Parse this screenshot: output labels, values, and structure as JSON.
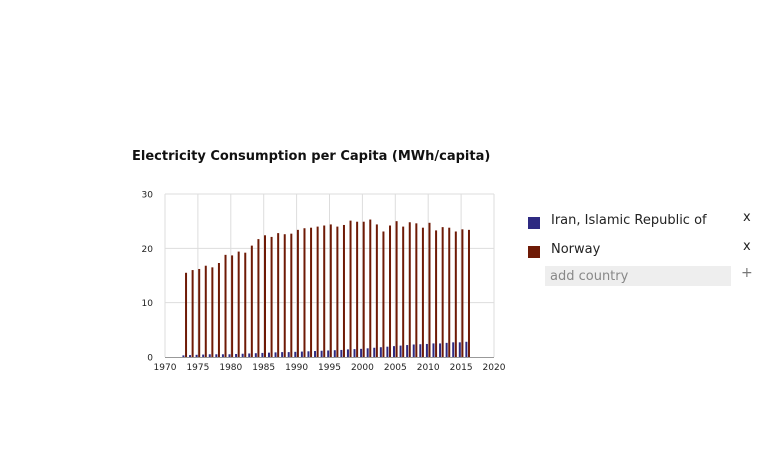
{
  "chart_data": {
    "type": "bar",
    "title": "Electricity Consumption per Capita (MWh/capita)",
    "xlabel": "",
    "ylabel": "",
    "xlim": [
      1970,
      2020
    ],
    "ylim": [
      0,
      30
    ],
    "x_ticks": [
      1970,
      1975,
      1980,
      1985,
      1990,
      1995,
      2000,
      2005,
      2010,
      2015,
      2020
    ],
    "y_ticks": [
      0,
      10,
      20,
      30
    ],
    "grid": true,
    "legend_position": "right",
    "x": [
      1973,
      1974,
      1975,
      1976,
      1977,
      1978,
      1979,
      1980,
      1981,
      1982,
      1983,
      1984,
      1985,
      1986,
      1987,
      1988,
      1989,
      1990,
      1991,
      1992,
      1993,
      1994,
      1995,
      1996,
      1997,
      1998,
      1999,
      2000,
      2001,
      2002,
      2003,
      2004,
      2005,
      2006,
      2007,
      2008,
      2009,
      2010,
      2011,
      2012,
      2013,
      2014,
      2015,
      2016
    ],
    "series": [
      {
        "name": "Iran, Islamic Republic of",
        "color": "#2e2a82",
        "values": [
          0.3,
          0.35,
          0.4,
          0.45,
          0.5,
          0.5,
          0.5,
          0.5,
          0.55,
          0.6,
          0.65,
          0.7,
          0.75,
          0.8,
          0.85,
          0.9,
          0.9,
          0.95,
          1.0,
          1.05,
          1.1,
          1.15,
          1.2,
          1.25,
          1.3,
          1.4,
          1.45,
          1.5,
          1.6,
          1.7,
          1.8,
          1.9,
          2.0,
          2.1,
          2.2,
          2.3,
          2.35,
          2.4,
          2.5,
          2.5,
          2.6,
          2.7,
          2.7,
          2.8
        ]
      },
      {
        "name": "Norway",
        "color": "#6e1a06",
        "values": [
          15.5,
          16.0,
          16.2,
          16.8,
          16.5,
          17.3,
          18.8,
          18.7,
          19.4,
          19.2,
          20.5,
          21.7,
          22.4,
          22.1,
          22.8,
          22.6,
          22.7,
          23.4,
          23.7,
          23.8,
          24.0,
          24.2,
          24.4,
          24.0,
          24.3,
          25.1,
          24.9,
          24.9,
          25.3,
          24.4,
          23.1,
          24.2,
          25.0,
          24.0,
          24.8,
          24.6,
          23.8,
          24.7,
          23.3,
          23.9,
          23.8,
          23.1,
          23.5,
          23.4
        ]
      }
    ]
  },
  "legend": {
    "remove_symbol": "x",
    "add_placeholder": "add country",
    "add_symbol": "+"
  }
}
